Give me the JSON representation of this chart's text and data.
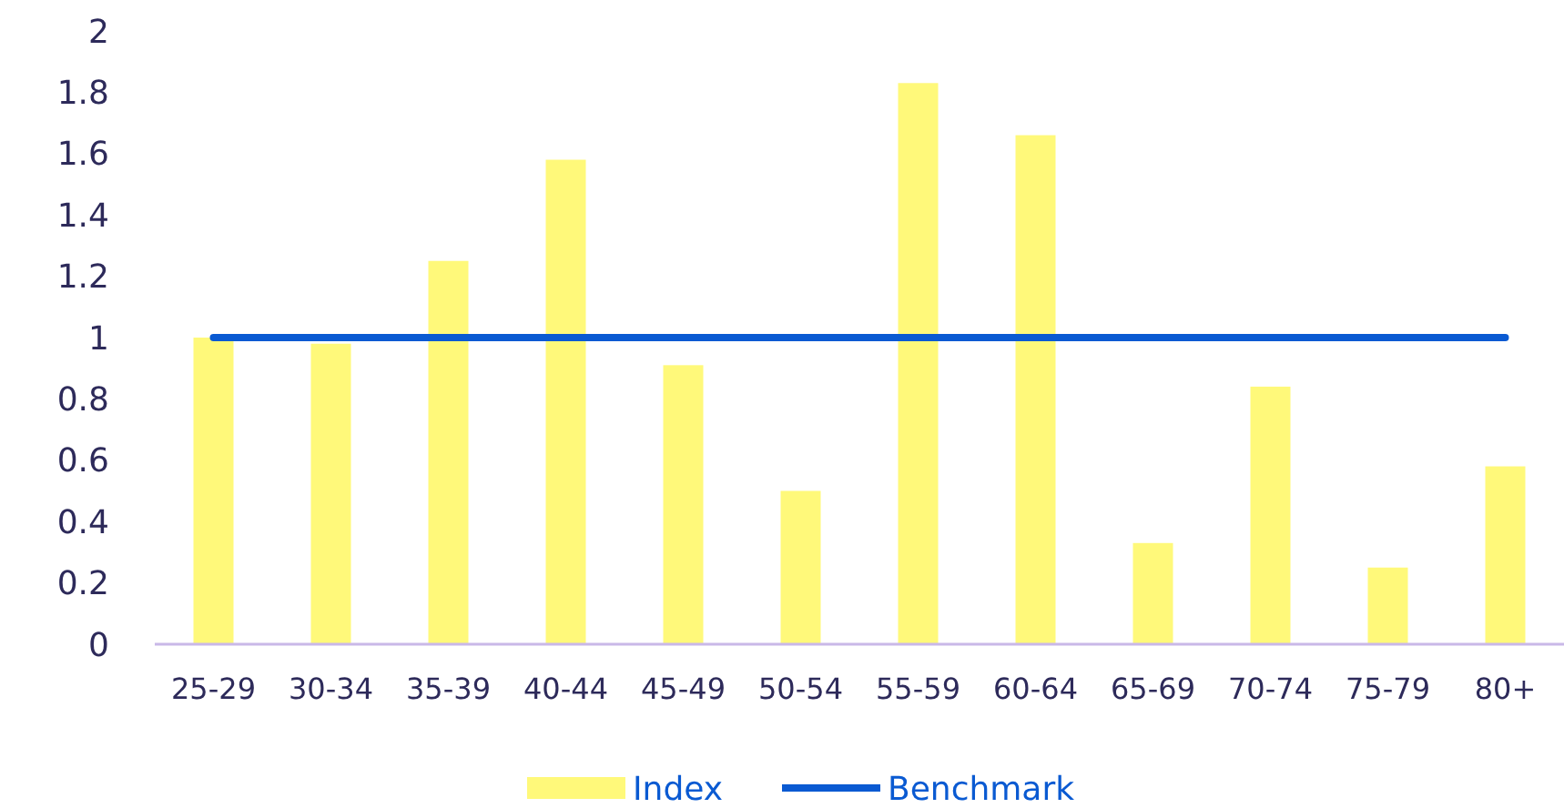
{
  "chart_data": {
    "type": "bar",
    "categories": [
      "25-29",
      "30-34",
      "35-39",
      "40-44",
      "45-49",
      "50-54",
      "55-59",
      "60-64",
      "65-69",
      "70-74",
      "75-79",
      "80+"
    ],
    "series": [
      {
        "name": "Index",
        "color": "#fff97a",
        "values": [
          1.0,
          0.98,
          1.25,
          1.58,
          0.91,
          0.5,
          1.83,
          1.66,
          0.33,
          0.84,
          0.25,
          0.58
        ]
      },
      {
        "name": "Benchmark",
        "type": "line",
        "color": "#0a5ad2",
        "values": [
          1,
          1,
          1,
          1,
          1,
          1,
          1,
          1,
          1,
          1,
          1,
          1
        ]
      }
    ],
    "ylim": [
      0,
      2
    ],
    "yticks": [
      0,
      0.2,
      0.4,
      0.6,
      0.8,
      1,
      1.2,
      1.4,
      1.6,
      1.8,
      2
    ],
    "grid": false,
    "legend": "bottom"
  }
}
